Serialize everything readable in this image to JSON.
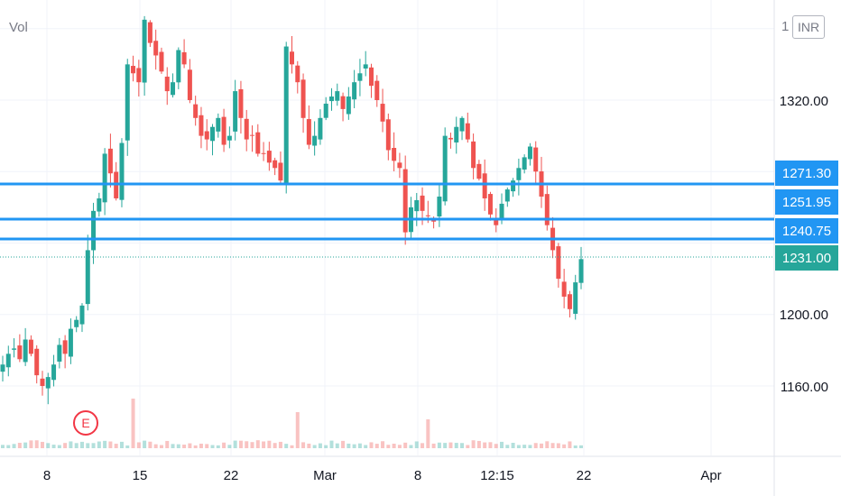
{
  "toolbar": {
    "volume_label": "Vol",
    "currency_prefix": "1",
    "currency": "INR"
  },
  "earnings_marker": {
    "label": "E",
    "color": "#f23645",
    "date": "10 Feb"
  },
  "colors": {
    "up": "#26a69a",
    "down": "#ef5350",
    "level_line": "#2196f3",
    "last_price": "#26a69a",
    "axis_text": "#131722",
    "grid": "#f0f3fa"
  },
  "chart_data": {
    "type": "candlestick",
    "ylim": [
      1140,
      1385
    ],
    "y_ticks": [
      1160,
      1200,
      1320
    ],
    "y_tick_labels": [
      "1160.00",
      "1200.00",
      "1320.00"
    ],
    "x_tick_labels": [
      "8",
      "15",
      "22",
      "Mar",
      "8",
      "12:15",
      "22",
      "Apr"
    ],
    "horizontal_levels": [
      {
        "value": 1271.3,
        "label": "1271.30"
      },
      {
        "value": 1251.95,
        "label": "1251.95"
      },
      {
        "value": 1240.75,
        "label": "1240.75"
      }
    ],
    "last_price": {
      "value": 1231.0,
      "label": "1231.00"
    },
    "closes": [
      1172,
      1178,
      1181,
      1175,
      1186,
      1178,
      1166,
      1160,
      1165,
      1172,
      1183,
      1178,
      1192,
      1197,
      1205,
      1236,
      1258,
      1265,
      1290,
      1279,
      1265,
      1296,
      1340,
      1335,
      1330,
      1365,
      1352,
      1345,
      1336,
      1325,
      1330,
      1348,
      1340,
      1320,
      1310,
      1300,
      1298,
      1305,
      1310,
      1295,
      1300,
      1325,
      1310,
      1298,
      1300,
      1290,
      1290,
      1285,
      1282,
      1275,
      1350,
      1340,
      1330,
      1310,
      1295,
      1300,
      1310,
      1318,
      1322,
      1325,
      1315,
      1322,
      1330,
      1335,
      1340,
      1328,
      1320,
      1308,
      1292,
      1286,
      1282,
      1246,
      1260,
      1264,
      1258,
      1255,
      1252,
      1266,
      1300,
      1298,
      1305,
      1310,
      1298,
      1282,
      1276,
      1265,
      1256,
      1250,
      1262,
      1270,
      1275,
      1282,
      1288,
      1294,
      1280,
      1266,
      1250,
      1236,
      1220,
      1210,
      1203,
      1218,
      1231
    ]
  }
}
